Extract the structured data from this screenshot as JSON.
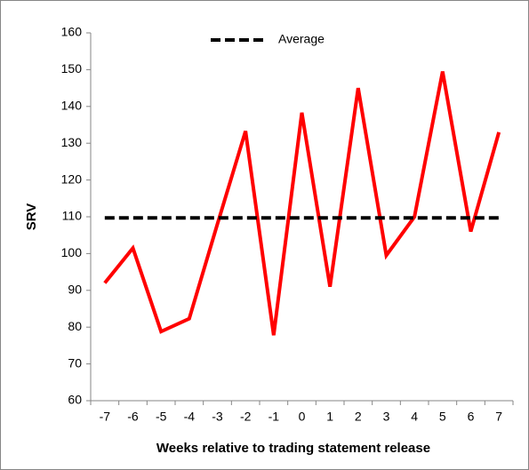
{
  "chart_data": {
    "type": "line",
    "x_label": "Weeks relative to trading statement release",
    "y_label": "SRV",
    "categories": [
      "-7",
      "-6",
      "-5",
      "-4",
      "-3",
      "-2",
      "-1",
      "0",
      "1",
      "2",
      "3",
      "4",
      "5",
      "6",
      "7"
    ],
    "series": [
      {
        "color": "#ff0000",
        "values": [
          92,
          101.5,
          78.8,
          82.3,
          108,
          133.3,
          77.8,
          138.3,
          91,
          145,
          99.5,
          110,
          149.5,
          106,
          133
        ]
      },
      {
        "name": "Average",
        "color": "#000000",
        "dashed": true,
        "values": [
          109.7,
          109.7,
          109.7,
          109.7,
          109.7,
          109.7,
          109.7,
          109.7,
          109.7,
          109.7,
          109.7,
          109.7,
          109.7,
          109.7,
          109.7
        ]
      }
    ],
    "ylim": [
      60,
      160
    ],
    "yticks": [
      60,
      70,
      80,
      90,
      100,
      110,
      120,
      130,
      140,
      150,
      160
    ],
    "legend": "top"
  }
}
